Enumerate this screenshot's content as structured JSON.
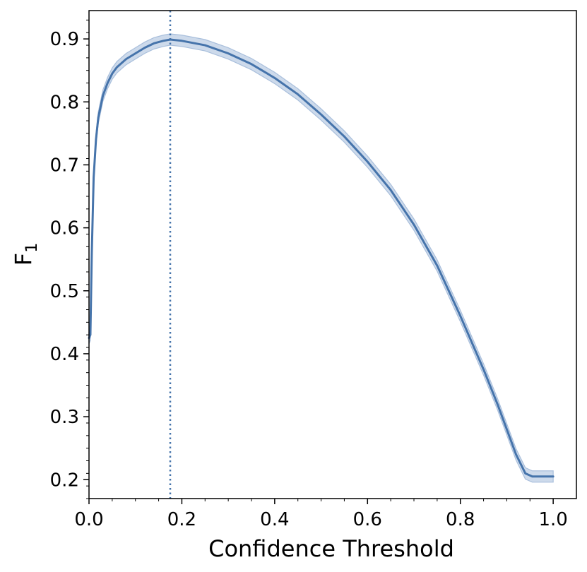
{
  "chart_data": {
    "type": "line",
    "xlabel": "Confidence Threshold",
    "ylabel": "F",
    "ylabel_subscript": "1",
    "xlim": [
      0.0,
      1.05
    ],
    "ylim": [
      0.17,
      0.945
    ],
    "xticks": [
      {
        "value": 0.0,
        "label": "0.0"
      },
      {
        "value": 0.2,
        "label": "0.2"
      },
      {
        "value": 0.4,
        "label": "0.4"
      },
      {
        "value": 0.6,
        "label": "0.6"
      },
      {
        "value": 0.8,
        "label": "0.8"
      },
      {
        "value": 1.0,
        "label": "1.0"
      }
    ],
    "yticks": [
      {
        "value": 0.2,
        "label": "0.2"
      },
      {
        "value": 0.3,
        "label": "0.3"
      },
      {
        "value": 0.4,
        "label": "0.4"
      },
      {
        "value": 0.5,
        "label": "0.5"
      },
      {
        "value": 0.6,
        "label": "0.6"
      },
      {
        "value": 0.7,
        "label": "0.7"
      },
      {
        "value": 0.8,
        "label": "0.8"
      },
      {
        "value": 0.9,
        "label": "0.9"
      }
    ],
    "grid": false,
    "legend": "none",
    "colors": {
      "line": "#4674ab",
      "band": "#c4d4e8",
      "band_edge": "#a9bfdc",
      "reference": "#4674ab"
    },
    "reference_line": {
      "x": 0.175,
      "style": "dotted"
    },
    "band_halfwidth": 0.009,
    "series": [
      {
        "x": [
          0.0,
          0.003,
          0.006,
          0.01,
          0.015,
          0.02,
          0.03,
          0.04,
          0.05,
          0.06,
          0.08,
          0.1,
          0.12,
          0.14,
          0.16,
          0.175,
          0.2,
          0.25,
          0.3,
          0.35,
          0.4,
          0.45,
          0.5,
          0.55,
          0.6,
          0.65,
          0.7,
          0.75,
          0.8,
          0.85,
          0.88,
          0.9,
          0.92,
          0.94,
          0.955,
          0.96,
          1.0
        ],
        "y": [
          0.425,
          0.43,
          0.56,
          0.68,
          0.74,
          0.775,
          0.81,
          0.83,
          0.845,
          0.855,
          0.868,
          0.877,
          0.886,
          0.893,
          0.897,
          0.899,
          0.897,
          0.89,
          0.877,
          0.86,
          0.838,
          0.812,
          0.78,
          0.745,
          0.705,
          0.66,
          0.605,
          0.54,
          0.46,
          0.375,
          0.32,
          0.28,
          0.24,
          0.21,
          0.205,
          0.205,
          0.205
        ]
      }
    ]
  }
}
